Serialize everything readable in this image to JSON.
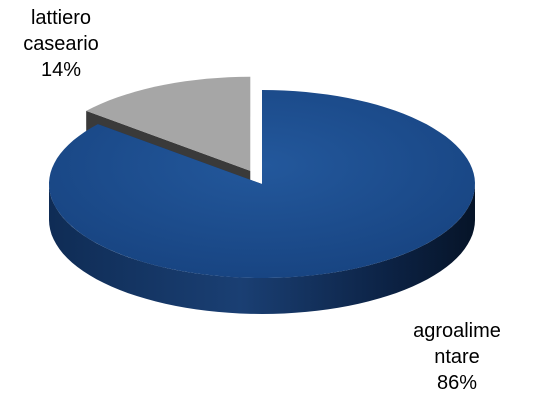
{
  "chart_data": {
    "type": "pie",
    "title": "",
    "slices": [
      {
        "name": "agroalimentare",
        "label_lines": [
          "agroalime",
          "ntare"
        ],
        "value": 86,
        "value_label": "86%",
        "color": "#1f4e8c"
      },
      {
        "name": "lattiero caseario",
        "label_lines": [
          "lattiero",
          "caseario"
        ],
        "value": 14,
        "value_label": "14%",
        "color": "#a6a6a6"
      }
    ],
    "style": "3d-exploded-pie",
    "legend": "none"
  }
}
